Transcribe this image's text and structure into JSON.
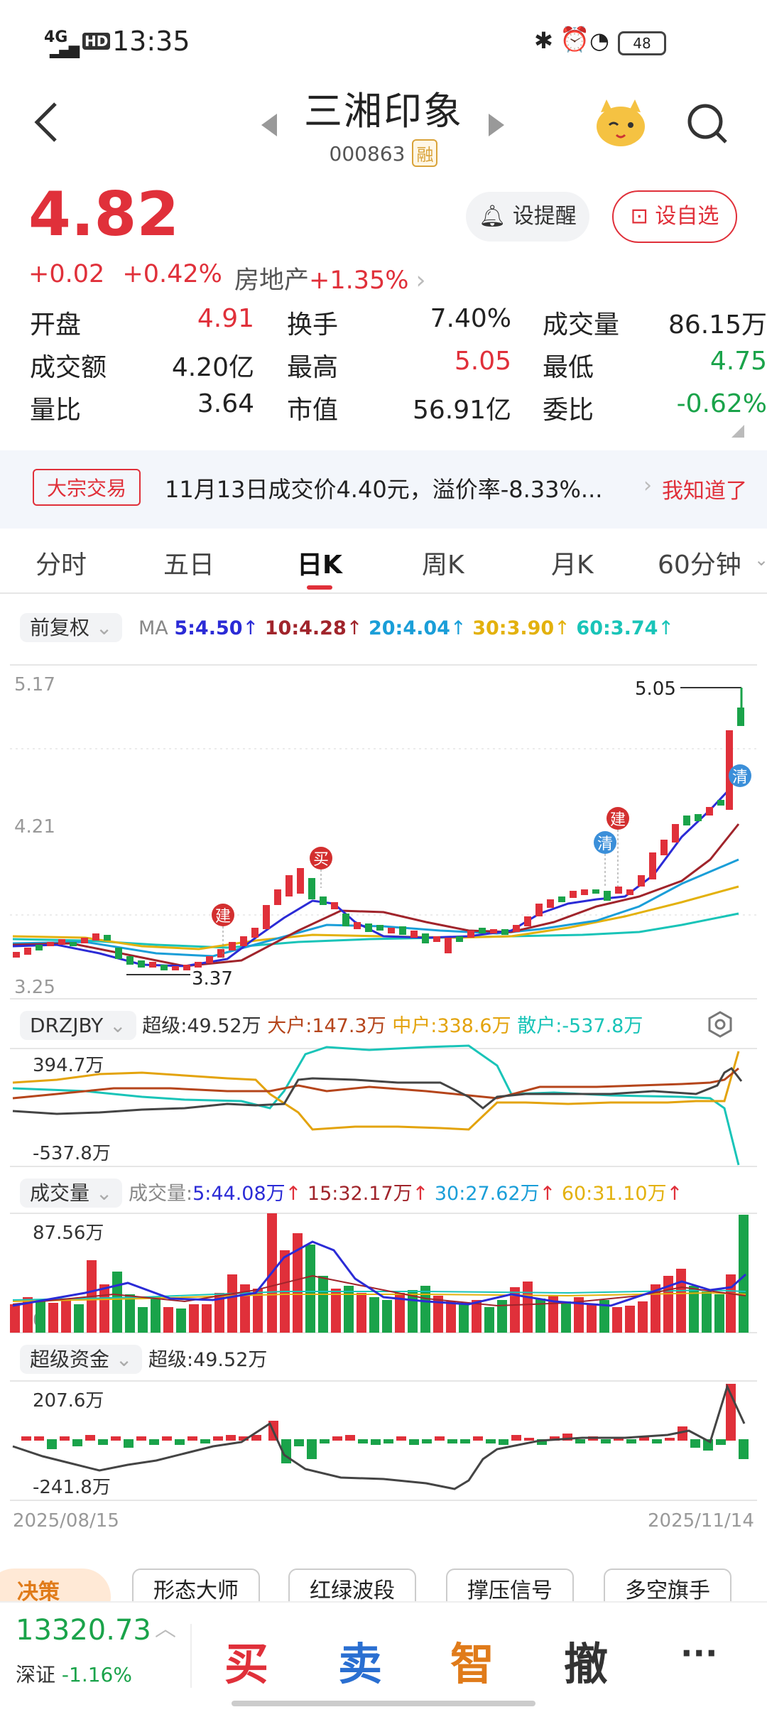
{
  "status_bar": {
    "network": "4G",
    "hd": "HD",
    "time": "13:35",
    "battery": "48"
  },
  "header": {
    "name": "三湘印象",
    "code": "000863",
    "margin_tag": "融"
  },
  "quote": {
    "price": "4.82",
    "change": "+0.02",
    "change_pct": "+0.42%",
    "sector": "房地产",
    "sector_pct": "+1.35%",
    "alert_label": "设提醒",
    "watch_label": "设自选"
  },
  "stats": [
    [
      {
        "label": "开盘",
        "value": "4.91",
        "tone": "red"
      },
      {
        "label": "换手",
        "value": "7.40%",
        "tone": "dark"
      },
      {
        "label": "成交量",
        "value": "86.15万",
        "tone": "dark"
      }
    ],
    [
      {
        "label": "成交额",
        "value": "4.20亿",
        "tone": "dark"
      },
      {
        "label": "最高",
        "value": "5.05",
        "tone": "red"
      },
      {
        "label": "最低",
        "value": "4.75",
        "tone": "green"
      }
    ],
    [
      {
        "label": "量比",
        "value": "3.64",
        "tone": "dark"
      },
      {
        "label": "市值",
        "value": "56.91亿",
        "tone": "dark"
      },
      {
        "label": "委比",
        "value": "-0.62%",
        "tone": "green"
      }
    ]
  ],
  "banner": {
    "tag": "大宗交易",
    "text": "11月13日成交价4.40元，溢价率-8.33%...",
    "action": "我知道了"
  },
  "tabs": [
    "分时",
    "五日",
    "日K",
    "周K",
    "月K",
    "60分钟"
  ],
  "active_tab": "日K",
  "kline": {
    "adjust": "前复权",
    "ma_label": "MA",
    "ma": [
      {
        "text": "5:4.50",
        "color": "#2b2bd6"
      },
      {
        "text": "10:4.28",
        "color": "#a0242b"
      },
      {
        "text": "20:4.04",
        "color": "#1a9ed8"
      },
      {
        "text": "30:3.90",
        "color": "#e3b10c"
      },
      {
        "text": "60:3.74",
        "color": "#19c4b8"
      }
    ],
    "axis_top": "5.17",
    "axis_mid": "4.21",
    "axis_bottom": "3.25",
    "high_label": "5.05",
    "low_label": "3.37",
    "markers": [
      "建",
      "买",
      "建",
      "清",
      "清"
    ]
  },
  "drzjby": {
    "name": "DRZJBY",
    "items": [
      {
        "text": "超级:49.52万",
        "color": "#333"
      },
      {
        "text": "大户:147.3万",
        "color": "#b5451b"
      },
      {
        "text": "中户:338.6万",
        "color": "#e3a30c"
      },
      {
        "text": "散户:-537.8万",
        "color": "#19c4b8"
      }
    ],
    "axis_top": "394.7万",
    "axis_bottom": "-537.8万"
  },
  "volume": {
    "name": "成交量",
    "label": "成交量:",
    "items": [
      {
        "text": "5:44.08万",
        "color": "#2b2bd6"
      },
      {
        "text": "15:32.17万",
        "color": "#a0242b"
      },
      {
        "text": "30:27.62万",
        "color": "#1a9ed8"
      },
      {
        "text": "60:31.10万",
        "color": "#e3b10c"
      }
    ],
    "axis_top": "87.56万",
    "axis_zero": "0"
  },
  "super": {
    "name": "超级资金",
    "item": "超级:49.52万",
    "axis_top": "207.6万",
    "axis_bottom": "-241.8万",
    "date_start": "2025/08/15",
    "date_end": "2025/11/14"
  },
  "tools": {
    "decision": "决策",
    "buttons": [
      "形态大师",
      "红绿波段",
      "撑压信号",
      "多空旗手"
    ]
  },
  "bottom": {
    "index_value": "13320.73",
    "index_name": "深证",
    "index_pct": "-1.16%",
    "buy": "买",
    "sell": "卖",
    "smart": "智",
    "cancel": "撤",
    "more": "···"
  },
  "colors": {
    "up": "#e0303a",
    "down": "#1aa34a",
    "accent": "#e0303a"
  }
}
